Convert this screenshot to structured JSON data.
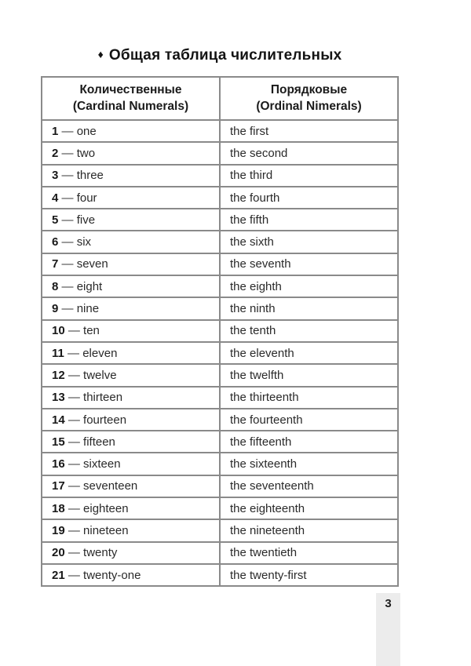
{
  "title": {
    "bullet": "♦",
    "text": "Общая таблица числительных"
  },
  "page_number": "3",
  "table": {
    "dash": "—",
    "columns": [
      {
        "title_ru": "Количественные",
        "title_en": "(Cardinal Numerals)"
      },
      {
        "title_ru": "Порядковые",
        "title_en": "(Ordinal Nimerals)"
      }
    ],
    "rows": [
      {
        "num": "1",
        "cardinal": "one",
        "ordinal": "the first"
      },
      {
        "num": "2",
        "cardinal": "two",
        "ordinal": "the second"
      },
      {
        "num": "3",
        "cardinal": "three",
        "ordinal": "the third"
      },
      {
        "num": "4",
        "cardinal": "four",
        "ordinal": "the fourth"
      },
      {
        "num": "5",
        "cardinal": "five",
        "ordinal": "the fifth"
      },
      {
        "num": "6",
        "cardinal": "six",
        "ordinal": "the sixth"
      },
      {
        "num": "7",
        "cardinal": "seven",
        "ordinal": "the seventh"
      },
      {
        "num": "8",
        "cardinal": "eight",
        "ordinal": "the eighth"
      },
      {
        "num": "9",
        "cardinal": "nine",
        "ordinal": "the ninth"
      },
      {
        "num": "10",
        "cardinal": "ten",
        "ordinal": "the tenth"
      },
      {
        "num": "11",
        "cardinal": "eleven",
        "ordinal": "the eleventh"
      },
      {
        "num": "12",
        "cardinal": "twelve",
        "ordinal": "the twelfth"
      },
      {
        "num": "13",
        "cardinal": "thirteen",
        "ordinal": "the thirteenth"
      },
      {
        "num": "14",
        "cardinal": "fourteen",
        "ordinal": "the fourteenth"
      },
      {
        "num": "15",
        "cardinal": "fifteen",
        "ordinal": "the fifteenth"
      },
      {
        "num": "16",
        "cardinal": "sixteen",
        "ordinal": "the sixteenth"
      },
      {
        "num": "17",
        "cardinal": "seventeen",
        "ordinal": "the seventeenth"
      },
      {
        "num": "18",
        "cardinal": "eighteen",
        "ordinal": "the eighteenth"
      },
      {
        "num": "19",
        "cardinal": "nineteen",
        "ordinal": "the nineteenth"
      },
      {
        "num": "20",
        "cardinal": "twenty",
        "ordinal": "the twentieth"
      },
      {
        "num": "21",
        "cardinal": "twenty-one",
        "ordinal": "the twenty-first"
      }
    ]
  }
}
